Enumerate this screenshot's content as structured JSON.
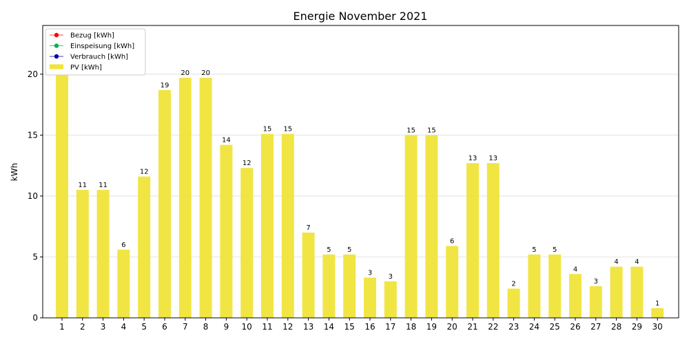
{
  "chart_data": {
    "type": "bar",
    "title": "Energie November 2021",
    "xlabel": "",
    "ylabel": "kWh",
    "ylim": [
      0,
      24
    ],
    "yticks": [
      0,
      5,
      10,
      15,
      20
    ],
    "grid": "horizontal",
    "legend_position": "top-left",
    "categories": [
      "1",
      "2",
      "3",
      "4",
      "5",
      "6",
      "7",
      "8",
      "9",
      "10",
      "11",
      "12",
      "13",
      "14",
      "15",
      "16",
      "17",
      "18",
      "19",
      "20",
      "21",
      "22",
      "23",
      "24",
      "25",
      "26",
      "27",
      "28",
      "29",
      "30"
    ],
    "series": [
      {
        "name": "PV [kWh]",
        "color": "#f0e43a",
        "values": [
          20.0,
          10.5,
          10.5,
          5.6,
          11.6,
          18.7,
          19.7,
          19.7,
          14.2,
          12.3,
          15.1,
          15.1,
          7.0,
          5.2,
          5.2,
          3.3,
          3.0,
          15.0,
          15.0,
          5.9,
          12.7,
          12.7,
          2.4,
          5.2,
          5.2,
          3.6,
          2.6,
          4.2,
          4.2,
          0.8
        ],
        "labels": [
          "",
          "11",
          "11",
          "6",
          "12",
          "19",
          "20",
          "20",
          "14",
          "12",
          "15",
          "15",
          "7",
          "5",
          "5",
          "3",
          "3",
          "15",
          "15",
          "6",
          "13",
          "13",
          "2",
          "5",
          "5",
          "4",
          "3",
          "4",
          "4",
          "1"
        ]
      }
    ],
    "legend": [
      {
        "label": "Bezug [kWh]",
        "color": "#ff0000",
        "kind": "line-marker"
      },
      {
        "label": "Einspeisung [kWh]",
        "color": "#00b050",
        "kind": "line-marker"
      },
      {
        "label": "Verbrauch [kWh]",
        "color": "#0000aa",
        "kind": "line-marker"
      },
      {
        "label": "PV [kWh]",
        "color": "#f0e43a",
        "kind": "bar"
      }
    ]
  }
}
